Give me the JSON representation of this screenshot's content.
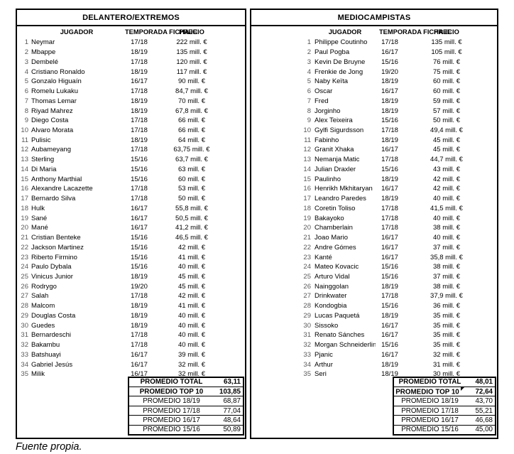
{
  "footer_note": "Fuente propia.",
  "tables": [
    {
      "title": "DELANTERO/EXTREMOS",
      "headers": {
        "player": "JUGADOR",
        "season": "TEMPORADA FICHAJE",
        "price": "PRECIO"
      },
      "rows": [
        [
          1,
          "Neymar",
          "17/18",
          "222 mill. €"
        ],
        [
          2,
          "Mbappe",
          "18/19",
          "135 mill. €"
        ],
        [
          3,
          "Dembelé",
          "17/18",
          "120 mill. €"
        ],
        [
          4,
          "Cristiano Ronaldo",
          "18/19",
          "117 mill. €"
        ],
        [
          5,
          "Gonzalo Higuaín",
          "16/17",
          "90 mill. €"
        ],
        [
          6,
          "Romelu Lukaku",
          "17/18",
          "84,7 mill. €"
        ],
        [
          7,
          "Thomas Lemar",
          "18/19",
          "70 mill. €"
        ],
        [
          8,
          "Riyad Mahrez",
          "18/19",
          "67,8 mill. €"
        ],
        [
          9,
          "Diego Costa",
          "17/18",
          "66 mill. €"
        ],
        [
          10,
          "Alvaro Morata",
          "17/18",
          "66 mill. €"
        ],
        [
          11,
          "Pulisic",
          "18/19",
          "64 mill. €"
        ],
        [
          12,
          "Aubameyang",
          "17/18",
          "63,75 mill. €"
        ],
        [
          13,
          "Sterling",
          "15/16",
          "63,7 mill. €"
        ],
        [
          14,
          "Di Maria",
          "15/16",
          "63 mill. €"
        ],
        [
          15,
          "Anthony Marthial",
          "15/16",
          "60 mill. €"
        ],
        [
          16,
          "Alexandre Lacazette",
          "17/18",
          "53 mill. €"
        ],
        [
          17,
          "Bernardo Silva",
          "17/18",
          "50 mill. €"
        ],
        [
          18,
          "Hulk",
          "16/17",
          "55,8 mill. €"
        ],
        [
          19,
          "Sané",
          "16/17",
          "50,5 mill. €"
        ],
        [
          20,
          "Mané",
          "16/17",
          "41,2 mill. €"
        ],
        [
          21,
          "Cristian Benteke",
          "15/16",
          "46,5 mill. €"
        ],
        [
          22,
          "Jackson Martinez",
          "15/16",
          "42 mill. €"
        ],
        [
          23,
          "Riberto Firmino",
          "15/16",
          "41 mill. €"
        ],
        [
          24,
          "Paulo Dybala",
          "15/16",
          "40 mill. €"
        ],
        [
          25,
          "Vinicus Junior",
          "18/19",
          "45 mill. €"
        ],
        [
          26,
          "Rodrygo",
          "19/20",
          "45 mill. €"
        ],
        [
          27,
          "Salah",
          "17/18",
          "42 mill. €"
        ],
        [
          28,
          "Malcom",
          "18/19",
          "41 mill. €"
        ],
        [
          29,
          "Douglas Costa",
          "18/19",
          "40 mill. €"
        ],
        [
          30,
          "Guedes",
          "18/19",
          "40 mill. €"
        ],
        [
          31,
          "Bernardeschi",
          "17/18",
          "40 mill. €"
        ],
        [
          32,
          "Bakambu",
          "17/18",
          "40 mill. €"
        ],
        [
          33,
          "Batshuayi",
          "16/17",
          "39 mill. €"
        ],
        [
          34,
          "Gabriel Jesús",
          "16/17",
          "32 mill. €"
        ],
        [
          35,
          "Milik",
          "16/17",
          "32 mill. €"
        ]
      ],
      "summary": [
        {
          "label": "PROMEDIO TOTAL",
          "value": "63,11",
          "bold": true,
          "flag": false
        },
        {
          "label": "PROMEDIO TOP 10",
          "value": "103,85",
          "bold": true,
          "flag": false
        },
        {
          "label": "PROMEDIO 18/19",
          "value": "68,87",
          "bold": false,
          "flag": false
        },
        {
          "label": "PROMEDIO 17/18",
          "value": "77,04",
          "bold": false,
          "flag": false
        },
        {
          "label": "PROMEDIO 16/17",
          "value": "48,64",
          "bold": false,
          "flag": false
        },
        {
          "label": "PROMEDIO 15/16",
          "value": "50,89",
          "bold": false,
          "flag": false
        }
      ]
    },
    {
      "title": "MEDIOCAMPISTAS",
      "headers": {
        "player": "JUGADOR",
        "season": "TEMPORADA FICHAJE",
        "price": "PRECIO"
      },
      "rows": [
        [
          1,
          "Philippe Coutinho",
          "17/18",
          "135 mill. €"
        ],
        [
          2,
          "Paul Pogba",
          "16/17",
          "105 mill. €"
        ],
        [
          3,
          "Kevin De Bruyne",
          "15/16",
          "76 mill. €"
        ],
        [
          4,
          "Frenkie de Jong",
          "19/20",
          "75 mill. €"
        ],
        [
          5,
          "Naby Keïta",
          "18/19",
          "60 mill. €"
        ],
        [
          6,
          "Oscar",
          "16/17",
          "60 mill. €"
        ],
        [
          7,
          "Fred",
          "18/19",
          "59 mill. €"
        ],
        [
          8,
          "Jorginho",
          "18/19",
          "57 mill. €"
        ],
        [
          9,
          "Alex Teixeira",
          "15/16",
          "50 mill. €"
        ],
        [
          10,
          "Gylfi Sigurdsson",
          "17/18",
          "49,4 mill. €"
        ],
        [
          11,
          "Fabinho",
          "18/19",
          "45 mill. €"
        ],
        [
          12,
          "Granit Xhaka",
          "16/17",
          "45 mill. €"
        ],
        [
          13,
          "Nemanja Matic",
          "17/18",
          "44,7 mill. €"
        ],
        [
          14,
          "Julian Draxler",
          "15/16",
          "43 mill. €"
        ],
        [
          15,
          "Paulinho",
          "18/19",
          "42 mill. €"
        ],
        [
          16,
          "Henrikh Mkhitaryan",
          "16/17",
          "42 mill. €"
        ],
        [
          17,
          "Leandro Paredes",
          "18/19",
          "40 mill. €"
        ],
        [
          18,
          "Coretin Toliso",
          "17/18",
          "41,5 mill. €"
        ],
        [
          19,
          "Bakayoko",
          "17/18",
          "40 mill. €"
        ],
        [
          20,
          "Chamberlain",
          "17/18",
          "38 mill. €"
        ],
        [
          21,
          "Joao Mario",
          "16/17",
          "40 mill. €"
        ],
        [
          22,
          "Andre Gómes",
          "16/17",
          "37 mill. €"
        ],
        [
          23,
          "Kanté",
          "16/17",
          "35,8 mill. €"
        ],
        [
          24,
          "Mateo Kovacic",
          "15/16",
          "38 mill. €"
        ],
        [
          25,
          "Arturo Vidal",
          "15/16",
          "37 mill. €"
        ],
        [
          26,
          "Nainggolan",
          "18/19",
          "38 mill. €"
        ],
        [
          27,
          "Drinkwater",
          "17/18",
          "37,9 mill. €"
        ],
        [
          28,
          "Kondogbia",
          "15/16",
          "36 mill. €"
        ],
        [
          29,
          "Lucas Paquetá",
          "18/19",
          "35 mill. €"
        ],
        [
          30,
          "Sissoko",
          "16/17",
          "35 mill. €"
        ],
        [
          31,
          "Renato Sánches",
          "16/17",
          "35 mill. €"
        ],
        [
          32,
          "Morgan Schneiderlin",
          "15/16",
          "35 mill. €"
        ],
        [
          33,
          "Pjanic",
          "16/17",
          "32 mill. €"
        ],
        [
          34,
          "Arthur",
          "18/19",
          "31 mill. €"
        ],
        [
          35,
          "Seri",
          "18/19",
          "30 mill. €"
        ]
      ],
      "summary": [
        {
          "label": "PROMEDIO TOTAL",
          "value": "48,01",
          "bold": true,
          "flag": false
        },
        {
          "label": "PROMEDIO TOP 10",
          "value": "72,64",
          "bold": true,
          "flag": true
        },
        {
          "label": "PROMEDIO 18/19",
          "value": "43,70",
          "bold": false,
          "flag": false
        },
        {
          "label": "PROMEDIO 17/18",
          "value": "55,21",
          "bold": false,
          "flag": false
        },
        {
          "label": "PROMEDIO 16/17",
          "value": "46,68",
          "bold": false,
          "flag": false
        },
        {
          "label": "PROMEDIO 15/16",
          "value": "45,00",
          "bold": false,
          "flag": false
        }
      ]
    }
  ]
}
